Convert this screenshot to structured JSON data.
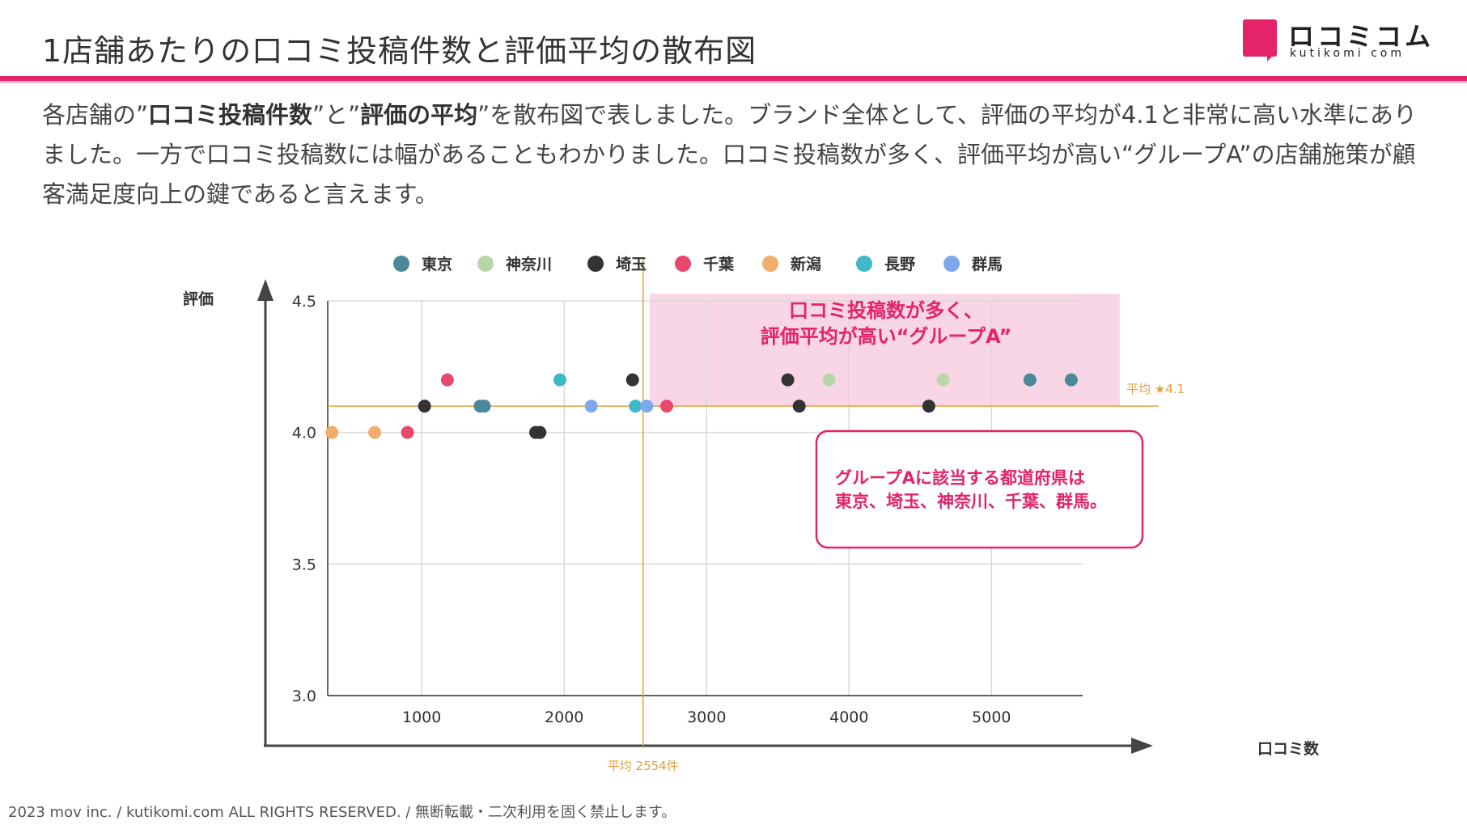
{
  "page": {
    "title": "1店舗あたりの口コミ投稿件数と評価平均の散布図",
    "logo_name": "ロコミコム",
    "logo_sub": "kutikomi com",
    "description": {
      "p1": "各店舗の”",
      "b1": "口コミ投稿件数",
      "p2": "”と”",
      "b2": "評価の平均",
      "p3": "”を散布図で表しました。ブランド全体として、評価の平均が4.1と非常に高い水準にありました。一方で口コミ投稿数には幅があることもわかりました。口コミ投稿数が多く、評価平均が高い“グループA”の店舗施策が顧客満足度向上の鍵であると言えます。"
    },
    "footer": "2023 mov inc. / kutikomi.com ALL RIGHTS RESERVED. / 無断転載・二次利用を固く禁止します。"
  },
  "colors": {
    "accent": "#e5236b",
    "avg_line": "#e0a040",
    "group_fill": "#f9d6e6"
  },
  "chart_data": {
    "type": "scatter",
    "xlabel": "口コミ数",
    "ylabel": "評価",
    "xlim": [
      340,
      5640
    ],
    "ylim": [
      3.0,
      4.5
    ],
    "xticks": [
      1000,
      2000,
      3000,
      4000,
      5000
    ],
    "yticks": [
      3.0,
      3.5,
      4.0,
      4.5
    ],
    "grid": true,
    "legend_position": "top",
    "avg_x": 2554,
    "avg_x_label": "平均 2554件",
    "avg_y": 4.1,
    "avg_y_label": "平均 ★4.1",
    "group_region": {
      "x": [
        2600,
        5900
      ],
      "y": [
        4.1,
        4.5
      ]
    },
    "group_label_1": "口コミ投稿数が多く、",
    "group_label_2": "評価平均が高い“グループA”",
    "callout_1": "グループAに該当する都道府県は",
    "callout_2": "東京、埼玉、神奈川、千葉、群馬。",
    "series": [
      {
        "name": "東京",
        "color": "#4a8a98",
        "points": [
          [
            1410,
            4.1
          ],
          [
            1440,
            4.1
          ],
          [
            5270,
            4.2
          ],
          [
            5560,
            4.2
          ]
        ]
      },
      {
        "name": "神奈川",
        "color": "#b7d7a8",
        "points": [
          [
            3860,
            4.2
          ],
          [
            4660,
            4.2
          ]
        ]
      },
      {
        "name": "埼玉",
        "color": "#333333",
        "points": [
          [
            1020,
            4.1
          ],
          [
            1800,
            4.0
          ],
          [
            1830,
            4.0
          ],
          [
            2480,
            4.2
          ],
          [
            3570,
            4.2
          ],
          [
            3650,
            4.1
          ],
          [
            4560,
            4.1
          ]
        ]
      },
      {
        "name": "千葉",
        "color": "#e8486b",
        "points": [
          [
            900,
            4.0
          ],
          [
            1180,
            4.2
          ],
          [
            2720,
            4.1
          ]
        ]
      },
      {
        "name": "新潟",
        "color": "#f2ad6b",
        "points": [
          [
            370,
            4.0
          ],
          [
            670,
            4.0
          ]
        ]
      },
      {
        "name": "長野",
        "color": "#3fb8c8",
        "points": [
          [
            1970,
            4.2
          ],
          [
            2500,
            4.1
          ]
        ]
      },
      {
        "name": "群馬",
        "color": "#7ea7ee",
        "points": [
          [
            2190,
            4.1
          ],
          [
            2580,
            4.1
          ]
        ]
      }
    ]
  }
}
